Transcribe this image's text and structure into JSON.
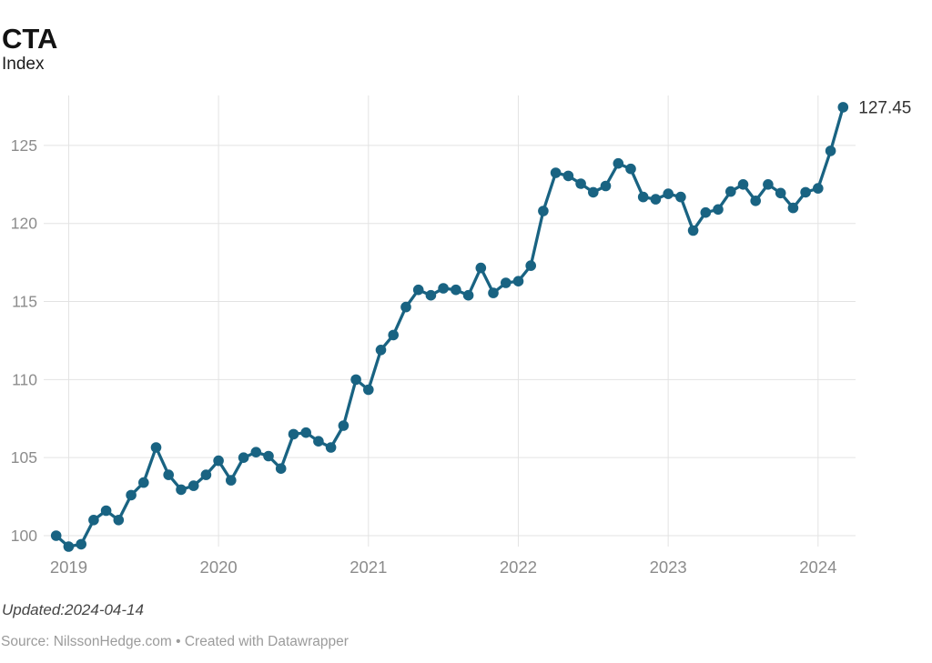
{
  "header": {
    "title": "CTA",
    "subtitle": "Index"
  },
  "footer": {
    "updated": "Updated:2024-04-14",
    "source": "Source: NilssonHedge.com • Created with Datawrapper"
  },
  "chart_data": {
    "type": "line",
    "title": "CTA",
    "subtitle": "Index",
    "x": [
      "2018-12",
      "2019-01",
      "2019-02",
      "2019-03",
      "2019-04",
      "2019-05",
      "2019-06",
      "2019-07",
      "2019-08",
      "2019-09",
      "2019-10",
      "2019-11",
      "2019-12",
      "2020-01",
      "2020-02",
      "2020-03",
      "2020-04",
      "2020-05",
      "2020-06",
      "2020-07",
      "2020-08",
      "2020-09",
      "2020-10",
      "2020-11",
      "2020-12",
      "2021-01",
      "2021-02",
      "2021-03",
      "2021-04",
      "2021-05",
      "2021-06",
      "2021-07",
      "2021-08",
      "2021-09",
      "2021-10",
      "2021-11",
      "2021-12",
      "2022-01",
      "2022-02",
      "2022-03",
      "2022-04",
      "2022-05",
      "2022-06",
      "2022-07",
      "2022-08",
      "2022-09",
      "2022-10",
      "2022-11",
      "2022-12",
      "2023-01",
      "2023-02",
      "2023-03",
      "2023-04",
      "2023-05",
      "2023-06",
      "2023-07",
      "2023-08",
      "2023-09",
      "2023-10",
      "2023-11",
      "2023-12",
      "2024-01",
      "2024-02",
      "2024-03"
    ],
    "values": [
      100.0,
      99.3,
      99.45,
      101.0,
      101.6,
      101.0,
      102.6,
      103.4,
      105.65,
      103.9,
      102.95,
      103.2,
      103.9,
      104.8,
      103.55,
      105.0,
      105.35,
      105.1,
      104.3,
      106.5,
      106.6,
      106.05,
      105.65,
      107.05,
      110.0,
      109.35,
      111.9,
      112.85,
      114.65,
      115.75,
      115.4,
      115.85,
      115.75,
      115.4,
      117.15,
      115.55,
      116.2,
      116.3,
      117.3,
      120.8,
      123.25,
      123.05,
      122.55,
      122.0,
      122.4,
      123.85,
      123.5,
      121.7,
      121.55,
      121.9,
      121.7,
      119.55,
      120.7,
      120.9,
      122.05,
      122.5,
      121.45,
      122.5,
      121.95,
      121.0,
      122.0,
      122.25,
      124.65,
      127.45
    ],
    "last_value_label": "127.45",
    "yticks": [
      100,
      105,
      110,
      115,
      120,
      125
    ],
    "ylim": [
      99.3,
      128.2
    ],
    "xticks": [
      "2019",
      "2020",
      "2021",
      "2022",
      "2023",
      "2024"
    ],
    "xlim": [
      "2018-11",
      "2024-04"
    ],
    "grid": true,
    "legend": "none",
    "colors": {
      "line": "#196382",
      "grid": "#e3e3e3",
      "axis_label": "#8c8c8c",
      "annotation": "#333333"
    }
  }
}
